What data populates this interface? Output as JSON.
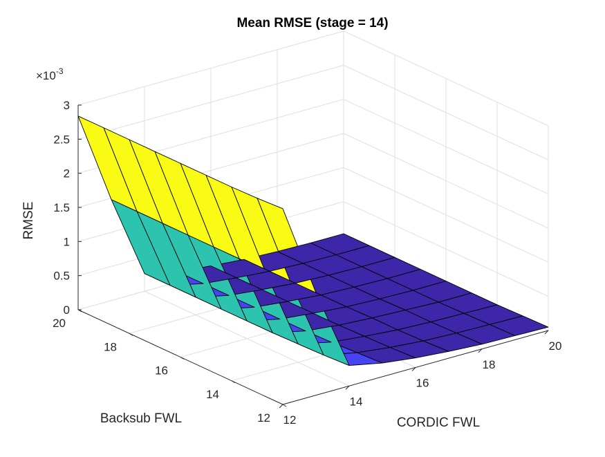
{
  "chart_data": {
    "type": "surface",
    "title": "Mean RMSE (stage = 14)",
    "xlabel": "CORDIC FWL",
    "ylabel": "Backsub FWL",
    "zlabel": "RMSE",
    "z_exponent_label": "×10",
    "z_exponent_power": "-3",
    "x": [
      12,
      13,
      14,
      15,
      16,
      17,
      18,
      19,
      20
    ],
    "y": [
      12,
      13,
      14,
      15,
      16,
      17,
      18,
      19,
      20
    ],
    "xlim": [
      12,
      20
    ],
    "ylim": [
      12,
      20
    ],
    "zlim": [
      0,
      3
    ],
    "x_ticks": [
      {
        "value": 12,
        "label": "12"
      },
      {
        "value": 14,
        "label": "14"
      },
      {
        "value": 16,
        "label": "16"
      },
      {
        "value": 18,
        "label": "18"
      },
      {
        "value": 20,
        "label": "20"
      }
    ],
    "y_ticks": [
      {
        "value": 12,
        "label": "12"
      },
      {
        "value": 14,
        "label": "14"
      },
      {
        "value": 16,
        "label": "16"
      },
      {
        "value": 18,
        "label": "18"
      },
      {
        "value": 20,
        "label": "20"
      }
    ],
    "z_ticks": [
      {
        "value": 0,
        "label": "0"
      },
      {
        "value": 0.5,
        "label": "0.5"
      },
      {
        "value": 1,
        "label": "1"
      },
      {
        "value": 1.5,
        "label": "1.5"
      },
      {
        "value": 2,
        "label": "2"
      },
      {
        "value": 2.5,
        "label": "2.5"
      },
      {
        "value": 3,
        "label": "3"
      }
    ],
    "z_values_note": "rows are Backsub FWL 12..20, columns are CORDIC FWL 12..20, values in units of 1e-3",
    "z": [
      [
        2.87,
        1.5,
        0.3,
        0.2,
        0.14,
        0.1,
        0.07,
        0.06,
        0.05
      ],
      [
        2.85,
        1.49,
        0.28,
        0.18,
        0.12,
        0.08,
        0.06,
        0.05,
        0.04
      ],
      [
        2.84,
        1.48,
        0.27,
        0.16,
        0.11,
        0.07,
        0.05,
        0.04,
        0.03
      ],
      [
        2.84,
        1.48,
        0.26,
        0.15,
        0.1,
        0.07,
        0.05,
        0.03,
        0.03
      ],
      [
        2.84,
        1.48,
        0.26,
        0.15,
        0.1,
        0.06,
        0.04,
        0.03,
        0.03
      ],
      [
        2.84,
        1.48,
        0.26,
        0.15,
        0.1,
        0.06,
        0.04,
        0.03,
        0.03
      ],
      [
        2.84,
        1.48,
        0.26,
        0.15,
        0.1,
        0.06,
        0.04,
        0.03,
        0.03
      ],
      [
        2.84,
        1.48,
        0.26,
        0.15,
        0.1,
        0.06,
        0.04,
        0.03,
        0.03
      ],
      [
        2.84,
        1.48,
        0.26,
        0.15,
        0.1,
        0.06,
        0.04,
        0.03,
        0.03
      ]
    ],
    "colormap": [
      "#3e26a8",
      "#4743f2",
      "#2f8ff0",
      "#12b7d4",
      "#2cc4ae",
      "#8dcc62",
      "#dbbc38",
      "#fcdb2a",
      "#f9fb14"
    ],
    "grid": true,
    "box": "open 3-D axes, default MATLAB view"
  }
}
